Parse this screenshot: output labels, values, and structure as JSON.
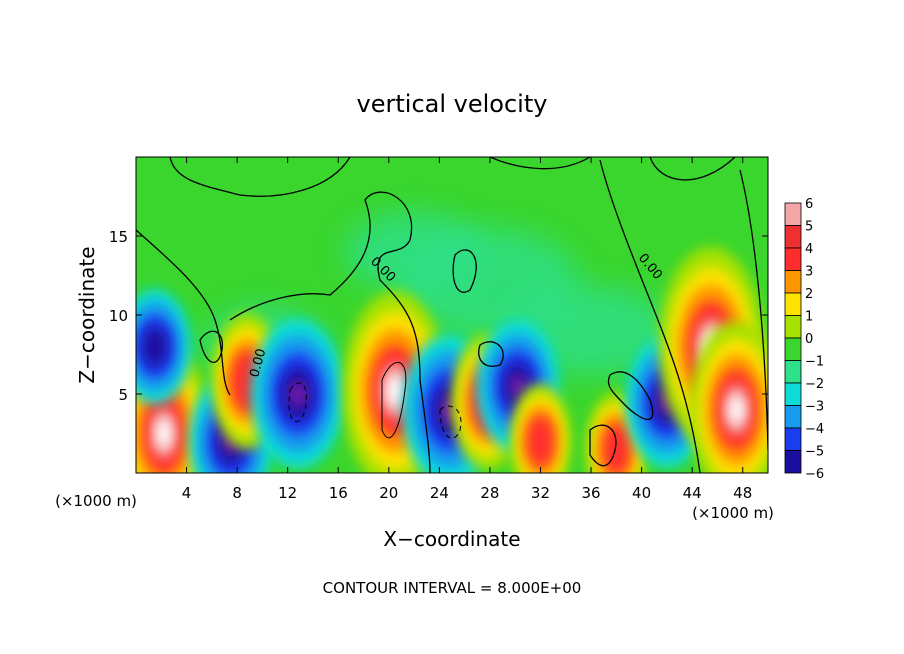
{
  "chart_data": {
    "type": "heatmap",
    "title": "vertical velocity",
    "xlabel": "X−coordinate",
    "ylabel": "Z−coordinate",
    "x_unit_left": "(×1000 m)",
    "x_unit_right": "(×1000 m)",
    "xlim": [
      0,
      50
    ],
    "ylim": [
      0,
      20
    ],
    "xticks": [
      4,
      8,
      12,
      16,
      20,
      24,
      28,
      32,
      36,
      40,
      44,
      48
    ],
    "yticks": [
      5,
      10,
      15
    ],
    "colorbar": {
      "levels": [
        6,
        5,
        4,
        3,
        2,
        1,
        0,
        -1,
        -2,
        -3,
        -4,
        -5,
        -6
      ],
      "colors": [
        "#f4a6a6",
        "#ee3030",
        "#ff2e2e",
        "#ff9600",
        "#fce300",
        "#a6e100",
        "#3ad52d",
        "#2ee08a",
        "#10dcd6",
        "#199bef",
        "#1c3ded",
        "#1b0fa0",
        "#7a1fa8"
      ]
    },
    "contour_labels": [
      "0.00",
      "0.00",
      "0.00"
    ],
    "footer": "CONTOUR INTERVAL = 8.000E+00",
    "features": [
      {
        "x": 2.2,
        "z": 2.5,
        "w": 6
      },
      {
        "x": 1.5,
        "z": 8.0,
        "w": -4
      },
      {
        "x": 7.5,
        "z": 2.0,
        "w": -5
      },
      {
        "x": 8.8,
        "z": 5.8,
        "w": 4
      },
      {
        "x": 12.8,
        "z": 5.0,
        "w": -6
      },
      {
        "x": 20.5,
        "z": 5.2,
        "w": 7
      },
      {
        "x": 24.8,
        "z": 4.0,
        "w": -6
      },
      {
        "x": 27.8,
        "z": 4.5,
        "w": 4
      },
      {
        "x": 30.2,
        "z": 5.5,
        "w": -5
      },
      {
        "x": 32.0,
        "z": 2.0,
        "w": 3
      },
      {
        "x": 38.0,
        "z": 1.5,
        "w": 3
      },
      {
        "x": 42.0,
        "z": 4.5,
        "w": -5
      },
      {
        "x": 45.5,
        "z": 8.0,
        "w": 7
      },
      {
        "x": 47.5,
        "z": 4.0,
        "w": 6
      }
    ]
  }
}
